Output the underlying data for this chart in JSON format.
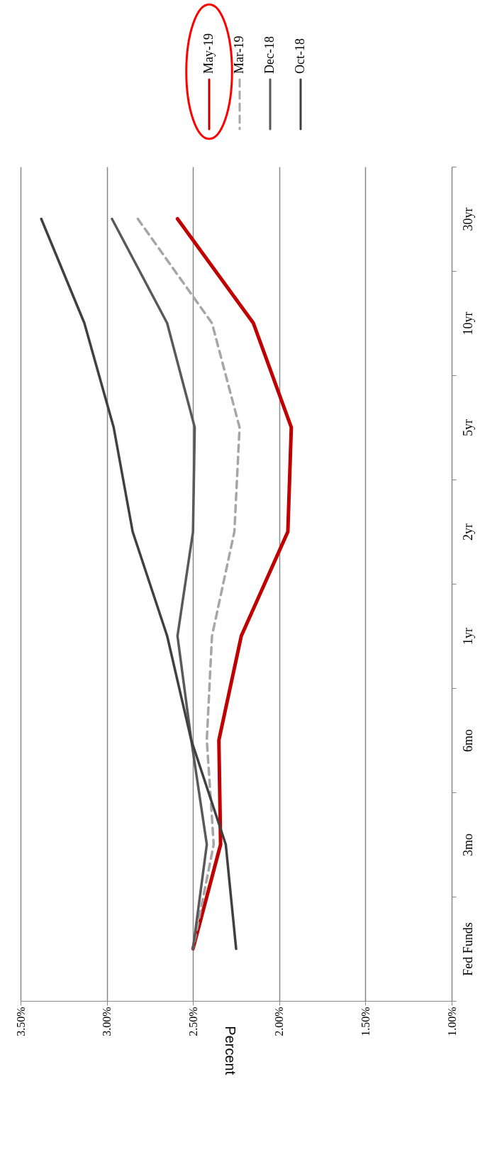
{
  "chart_data": {
    "type": "line",
    "orientation": "horizontal",
    "ylabel": "Percent",
    "categories": [
      "30yr",
      "10yr",
      "5yr",
      "2yr",
      "1yr",
      "6mo",
      "3mo",
      "Fed Funds"
    ],
    "series": [
      {
        "name": "May-19",
        "color": "#c00000",
        "values": [
          2.59,
          2.15,
          1.93,
          1.95,
          2.22,
          2.35,
          2.34,
          2.5
        ]
      },
      {
        "name": "Mar-19",
        "color": "#a6a6a6",
        "line_style": "dashed",
        "values": [
          2.82,
          2.39,
          2.23,
          2.26,
          2.39,
          2.42,
          2.38,
          2.5
        ]
      },
      {
        "name": "Dec-18",
        "color": "#595959",
        "values": [
          2.97,
          2.65,
          2.49,
          2.5,
          2.59,
          2.51,
          2.42,
          2.5
        ]
      },
      {
        "name": "Oct-18",
        "color": "#404040",
        "values": [
          3.38,
          3.13,
          2.96,
          2.85,
          2.65,
          2.51,
          2.31,
          2.25
        ]
      }
    ],
    "xlim": [
      3.5,
      1.0
    ],
    "xticks": [
      {
        "value": 3.5,
        "label": "3.50%"
      },
      {
        "value": 3.0,
        "label": "3.00%"
      },
      {
        "value": 2.5,
        "label": "2.50%"
      },
      {
        "value": 2.0,
        "label": "2.00%"
      },
      {
        "value": 1.5,
        "label": "1.50%"
      },
      {
        "value": 1.0,
        "label": "1.00%"
      }
    ],
    "grid": "x",
    "legend": "top right",
    "line_style": "solid",
    "marker": "none"
  }
}
